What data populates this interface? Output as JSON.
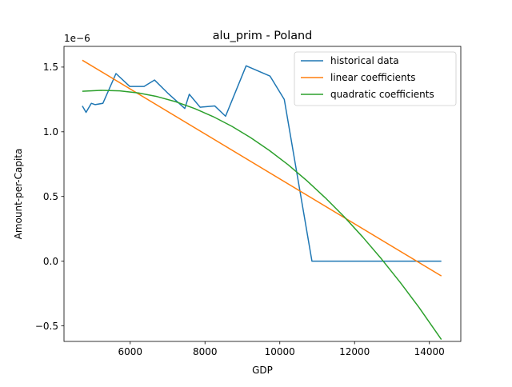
{
  "chart_data": {
    "type": "line",
    "title": "alu_prim - Poland",
    "xlabel": "GDP",
    "ylabel": "Amount-per-Capita",
    "offset_label": "1e−6",
    "xlim": [
      4230,
      14840
    ],
    "ylim": [
      -0.62,
      1.66
    ],
    "x_ticks": [
      6000,
      8000,
      10000,
      12000,
      14000
    ],
    "x_tick_labels": [
      "6000",
      "8000",
      "10000",
      "12000",
      "14000"
    ],
    "y_ticks": [
      -0.5,
      0.0,
      0.5,
      1.0,
      1.5
    ],
    "y_tick_labels": [
      "−0.5",
      "0.0",
      "0.5",
      "1.0",
      "1.5"
    ],
    "grid": false,
    "legend_position": "top-right",
    "series": [
      {
        "name": "historical data",
        "color": "#1f77b4",
        "x": [
          4720,
          4820,
          4960,
          5060,
          5270,
          5620,
          5990,
          6370,
          6650,
          7000,
          7460,
          7580,
          7870,
          8260,
          8550,
          9100,
          9740,
          10120,
          10860,
          14320
        ],
        "y": [
          1.2,
          1.15,
          1.22,
          1.21,
          1.22,
          1.45,
          1.35,
          1.35,
          1.4,
          1.3,
          1.18,
          1.29,
          1.19,
          1.2,
          1.12,
          1.51,
          1.43,
          1.25,
          0.0,
          0.0
        ]
      },
      {
        "name": "linear coefficients",
        "color": "#ff7f0e",
        "x": [
          4720,
          14320
        ],
        "y": [
          1.553,
          -0.114
        ]
      },
      {
        "name": "quadratic coefficients",
        "color": "#2ca02c",
        "x": [
          4720,
          5220,
          5720,
          6220,
          6720,
          7220,
          7720,
          8220,
          8720,
          9220,
          9720,
          10220,
          10720,
          11220,
          11720,
          12220,
          12720,
          13220,
          13720,
          14320
        ],
        "y": [
          1.313,
          1.32,
          1.316,
          1.3,
          1.272,
          1.232,
          1.18,
          1.117,
          1.042,
          0.955,
          0.856,
          0.746,
          0.623,
          0.489,
          0.344,
          0.186,
          0.017,
          -0.164,
          -0.356,
          -0.605
        ]
      }
    ]
  }
}
